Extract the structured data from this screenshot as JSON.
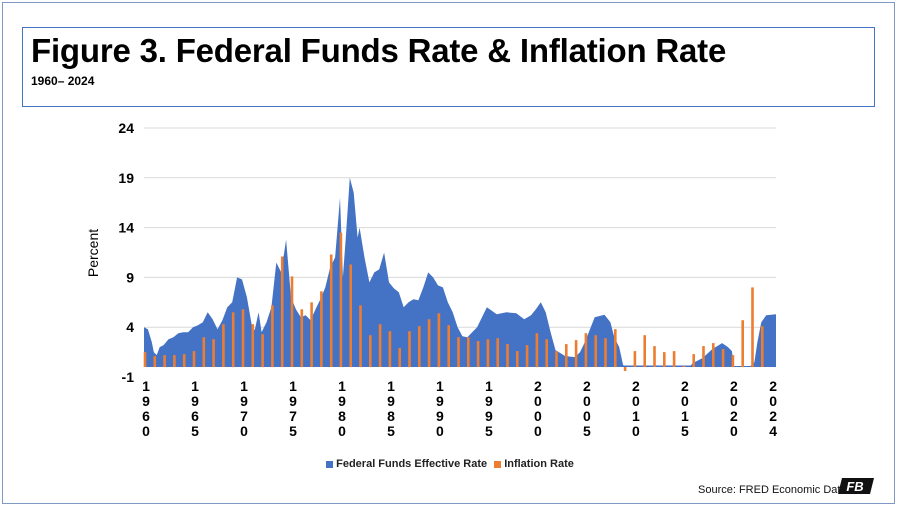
{
  "header": {
    "title": "Figure 3. Federal Funds Rate & Inflation Rate",
    "subtitle": "1960– 2024"
  },
  "footer": {
    "source": "Source: FRED Economic Data",
    "logo_text": "FB"
  },
  "colors": {
    "fed_funds": "#4472c4",
    "inflation": "#ed7d31",
    "gridline": "#d9d9d9",
    "frame": "#7f9ac2"
  },
  "chart_data": {
    "type": "area",
    "ylabel": "Percent",
    "ylim": [
      -1,
      24
    ],
    "yticks": [
      "24",
      "19",
      "14",
      "9",
      "4",
      "-1"
    ],
    "xlim": [
      1960,
      2024.5
    ],
    "xtick_years": [
      1960,
      1965,
      1970,
      1975,
      1980,
      1985,
      1990,
      1995,
      2000,
      2005,
      2010,
      2015,
      2020,
      2024
    ],
    "grid": true,
    "legend_placement": "bottom",
    "series": [
      {
        "name": "Federal Funds Effective Rate",
        "type": "area",
        "points": [
          [
            1960.0,
            4.0
          ],
          [
            1960.4,
            3.8
          ],
          [
            1960.8,
            2.5
          ],
          [
            1961.0,
            1.5
          ],
          [
            1961.3,
            1.2
          ],
          [
            1961.6,
            2.0
          ],
          [
            1962.0,
            2.2
          ],
          [
            1962.5,
            2.8
          ],
          [
            1963.0,
            3.0
          ],
          [
            1963.5,
            3.4
          ],
          [
            1964.0,
            3.5
          ],
          [
            1964.5,
            3.5
          ],
          [
            1965.0,
            4.0
          ],
          [
            1965.5,
            4.2
          ],
          [
            1966.0,
            4.5
          ],
          [
            1966.5,
            5.5
          ],
          [
            1967.0,
            4.8
          ],
          [
            1967.5,
            3.8
          ],
          [
            1968.0,
            4.7
          ],
          [
            1968.5,
            6.0
          ],
          [
            1969.0,
            6.5
          ],
          [
            1969.5,
            9.0
          ],
          [
            1970.0,
            8.8
          ],
          [
            1970.5,
            7.0
          ],
          [
            1971.0,
            4.2
          ],
          [
            1971.3,
            3.7
          ],
          [
            1971.7,
            5.5
          ],
          [
            1972.0,
            3.5
          ],
          [
            1972.5,
            4.5
          ],
          [
            1973.0,
            6.0
          ],
          [
            1973.5,
            10.5
          ],
          [
            1974.0,
            9.5
          ],
          [
            1974.5,
            12.8
          ],
          [
            1975.0,
            7.0
          ],
          [
            1975.5,
            5.8
          ],
          [
            1976.0,
            5.0
          ],
          [
            1976.5,
            5.2
          ],
          [
            1977.0,
            4.7
          ],
          [
            1977.5,
            5.8
          ],
          [
            1978.0,
            6.8
          ],
          [
            1978.5,
            8.0
          ],
          [
            1979.0,
            10.0
          ],
          [
            1979.5,
            11.0
          ],
          [
            1980.0,
            17.0
          ],
          [
            1980.3,
            9.0
          ],
          [
            1980.6,
            13.0
          ],
          [
            1981.0,
            19.0
          ],
          [
            1981.4,
            17.5
          ],
          [
            1981.8,
            13.0
          ],
          [
            1982.0,
            14.0
          ],
          [
            1982.5,
            11.0
          ],
          [
            1983.0,
            8.5
          ],
          [
            1983.5,
            9.5
          ],
          [
            1984.0,
            9.8
          ],
          [
            1984.5,
            11.5
          ],
          [
            1985.0,
            8.5
          ],
          [
            1985.5,
            7.9
          ],
          [
            1986.0,
            7.5
          ],
          [
            1986.5,
            6.0
          ],
          [
            1987.0,
            6.5
          ],
          [
            1987.5,
            6.8
          ],
          [
            1988.0,
            6.7
          ],
          [
            1988.5,
            8.0
          ],
          [
            1989.0,
            9.5
          ],
          [
            1989.5,
            9.0
          ],
          [
            1990.0,
            8.2
          ],
          [
            1990.5,
            8.0
          ],
          [
            1991.0,
            6.5
          ],
          [
            1991.5,
            5.5
          ],
          [
            1992.0,
            4.0
          ],
          [
            1992.5,
            3.1
          ],
          [
            1993.0,
            3.0
          ],
          [
            1994.0,
            4.0
          ],
          [
            1995.0,
            6.0
          ],
          [
            1996.0,
            5.3
          ],
          [
            1997.0,
            5.5
          ],
          [
            1998.0,
            5.4
          ],
          [
            1998.8,
            4.8
          ],
          [
            1999.5,
            5.2
          ],
          [
            2000.0,
            5.8
          ],
          [
            2000.5,
            6.5
          ],
          [
            2001.0,
            5.5
          ],
          [
            2001.5,
            3.5
          ],
          [
            2002.0,
            1.7
          ],
          [
            2003.0,
            1.1
          ],
          [
            2004.0,
            1.0
          ],
          [
            2004.5,
            1.5
          ],
          [
            2005.0,
            2.5
          ],
          [
            2006.0,
            5.0
          ],
          [
            2007.0,
            5.25
          ],
          [
            2007.6,
            4.5
          ],
          [
            2008.0,
            3.0
          ],
          [
            2008.5,
            2.0
          ],
          [
            2008.9,
            0.2
          ],
          [
            2009.0,
            0.15
          ],
          [
            2015.8,
            0.15
          ],
          [
            2016.0,
            0.4
          ],
          [
            2017.0,
            0.9
          ],
          [
            2018.0,
            1.8
          ],
          [
            2019.0,
            2.4
          ],
          [
            2019.6,
            2.0
          ],
          [
            2020.0,
            1.6
          ],
          [
            2020.2,
            0.1
          ],
          [
            2021.9,
            0.1
          ],
          [
            2022.3,
            0.5
          ],
          [
            2022.6,
            2.5
          ],
          [
            2023.0,
            4.5
          ],
          [
            2023.5,
            5.2
          ],
          [
            2024.5,
            5.3
          ]
        ]
      },
      {
        "name": "Inflation Rate",
        "type": "bar",
        "years": [
          1960,
          1961,
          1962,
          1963,
          1964,
          1965,
          1966,
          1967,
          1968,
          1969,
          1970,
          1971,
          1972,
          1973,
          1974,
          1975,
          1976,
          1977,
          1978,
          1979,
          1980,
          1981,
          1982,
          1983,
          1984,
          1985,
          1986,
          1987,
          1988,
          1989,
          1990,
          1991,
          1992,
          1993,
          1994,
          1995,
          1996,
          1997,
          1998,
          1999,
          2000,
          2001,
          2002,
          2003,
          2004,
          2005,
          2006,
          2007,
          2008,
          2009,
          2010,
          2011,
          2012,
          2013,
          2014,
          2015,
          2016,
          2017,
          2018,
          2019,
          2020,
          2021,
          2022,
          2023
        ],
        "values": [
          1.5,
          1.1,
          1.2,
          1.2,
          1.3,
          1.6,
          3.0,
          2.8,
          4.3,
          5.5,
          5.8,
          4.3,
          3.3,
          6.2,
          11.1,
          9.1,
          5.8,
          6.5,
          7.6,
          11.3,
          13.5,
          10.3,
          6.2,
          3.2,
          4.3,
          3.6,
          1.9,
          3.6,
          4.1,
          4.8,
          5.4,
          4.2,
          3.0,
          3.0,
          2.6,
          2.8,
          2.9,
          2.3,
          1.6,
          2.2,
          3.4,
          2.8,
          1.6,
          2.3,
          2.7,
          3.4,
          3.2,
          2.9,
          3.8,
          -0.4,
          1.6,
          3.2,
          2.1,
          1.5,
          1.6,
          0.1,
          1.3,
          2.1,
          2.4,
          1.8,
          1.2,
          4.7,
          8.0,
          4.1
        ]
      }
    ]
  }
}
